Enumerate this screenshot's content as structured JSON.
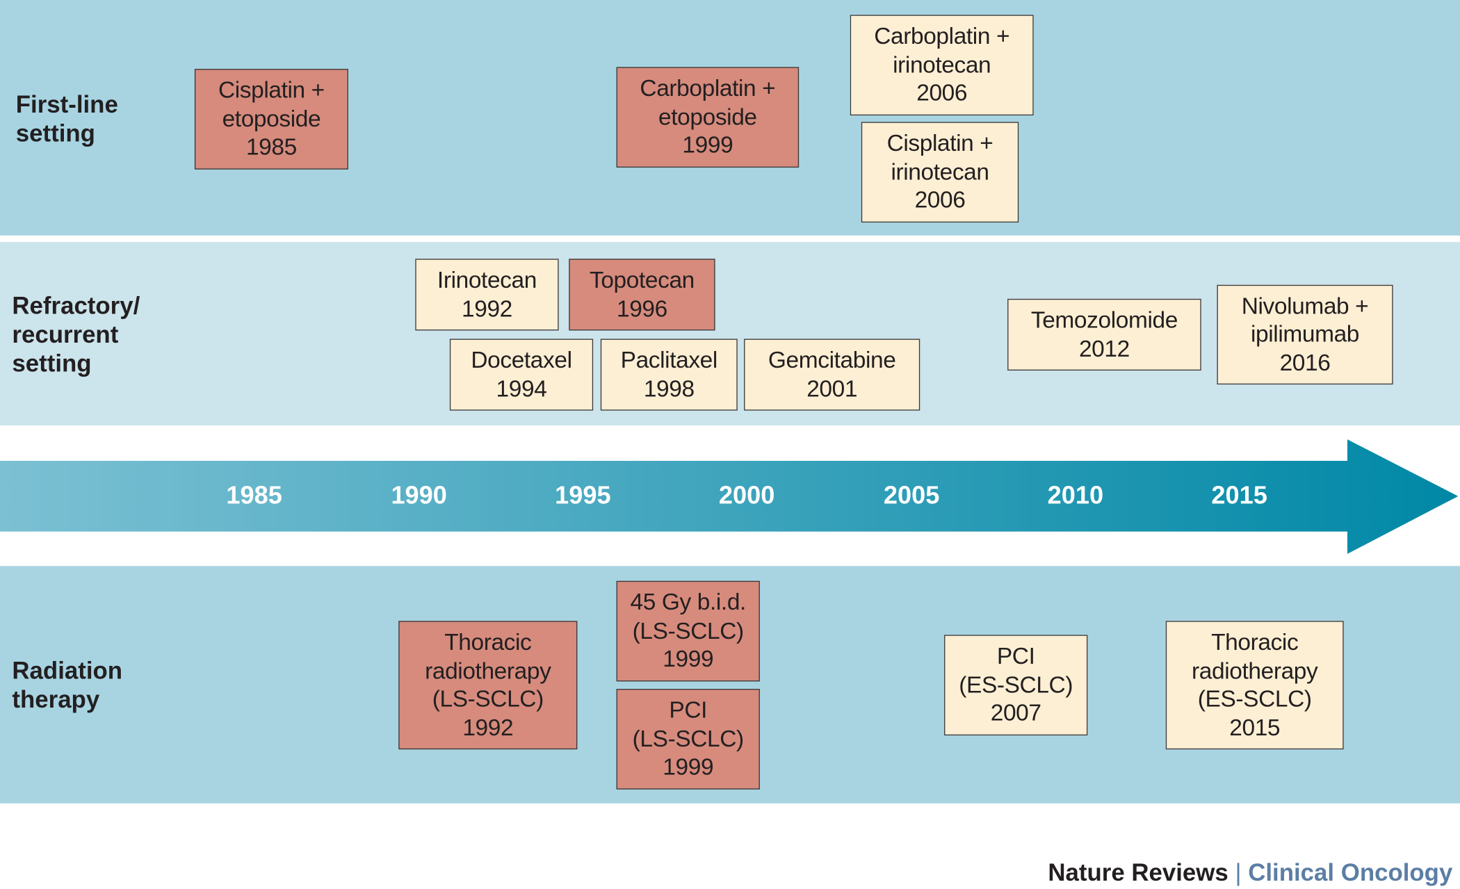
{
  "rows": [
    {
      "label": "First-line setting",
      "lines": [
        "First-line",
        "setting"
      ]
    },
    {
      "label": "Refractory/ recurrent setting",
      "lines": [
        "Refractory/",
        "recurrent",
        "setting"
      ]
    },
    {
      "label": "Radiation therapy",
      "lines": [
        "Radiation",
        "therapy"
      ]
    }
  ],
  "timeline_years": [
    "1985",
    "1990",
    "1995",
    "2000",
    "2005",
    "2010",
    "2015"
  ],
  "colors": {
    "band_dark": "#a8d4e2",
    "band_light": "#cce4ec",
    "box_red": "#d68b7d",
    "box_cream": "#fdefd4",
    "arrow_start": "#7cc0d3",
    "arrow_end": "#0088a6",
    "publisher_accent": "#5b7ea4"
  },
  "boxes": [
    {
      "row": "first-line",
      "style": "red",
      "lines": [
        "Cisplatin +",
        "etoposide",
        "1985"
      ]
    },
    {
      "row": "first-line",
      "style": "red",
      "lines": [
        "Carboplatin +",
        "etoposide",
        "1999"
      ]
    },
    {
      "row": "first-line",
      "style": "cream",
      "lines": [
        "Carboplatin +",
        "irinotecan",
        "2006"
      ]
    },
    {
      "row": "first-line",
      "style": "cream",
      "lines": [
        "Cisplatin +",
        "irinotecan",
        "2006"
      ]
    },
    {
      "row": "refractory",
      "style": "cream",
      "lines": [
        "Irinotecan",
        "1992"
      ]
    },
    {
      "row": "refractory",
      "style": "red",
      "lines": [
        "Topotecan",
        "1996"
      ]
    },
    {
      "row": "refractory",
      "style": "cream",
      "lines": [
        "Docetaxel",
        "1994"
      ]
    },
    {
      "row": "refractory",
      "style": "cream",
      "lines": [
        "Paclitaxel",
        "1998"
      ]
    },
    {
      "row": "refractory",
      "style": "cream",
      "lines": [
        "Gemcitabine",
        "2001"
      ]
    },
    {
      "row": "refractory",
      "style": "cream",
      "lines": [
        "Temozolomide",
        "2012"
      ]
    },
    {
      "row": "refractory",
      "style": "cream",
      "lines": [
        "Nivolumab +",
        "ipilimumab",
        "2016"
      ]
    },
    {
      "row": "radiation",
      "style": "red",
      "lines": [
        "Thoracic",
        "radiotherapy",
        "(LS-SCLC)",
        "1992"
      ]
    },
    {
      "row": "radiation",
      "style": "red",
      "lines": [
        "45 Gy b.i.d.",
        "(LS-SCLC)",
        "1999"
      ]
    },
    {
      "row": "radiation",
      "style": "red",
      "lines": [
        "PCI",
        "(LS-SCLC)",
        "1999"
      ]
    },
    {
      "row": "radiation",
      "style": "cream",
      "lines": [
        "PCI",
        "(ES-SCLC)",
        "2007"
      ]
    },
    {
      "row": "radiation",
      "style": "cream",
      "lines": [
        "Thoracic",
        "radiotherapy",
        "(ES-SCLC)",
        "2015"
      ]
    }
  ],
  "footer": {
    "journal": "Nature Reviews",
    "separator": "|",
    "section": "Clinical Oncology"
  }
}
